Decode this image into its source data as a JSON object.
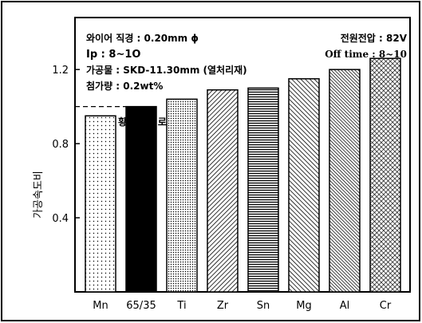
{
  "chart_data": {
    "type": "bar",
    "categories": [
      "Mn",
      "65/35",
      "Ti",
      "Zr",
      "Sn",
      "Mg",
      "Al",
      "Cr"
    ],
    "values": [
      0.95,
      1.0,
      1.04,
      1.09,
      1.1,
      1.15,
      1.2,
      1.26
    ],
    "ylabel": "가공속도비",
    "ylim": [
      0,
      1.4
    ],
    "yticks": [
      0.4,
      0.8,
      1.2
    ],
    "reference_line": 1.0,
    "grid": false,
    "annotations": {
      "wire_dia": "와이어 직경 : 0.20mm ϕ",
      "ip": "Ip : 8~1O",
      "workpiece": "가공물 : SKD-11.30mm (열처리재)",
      "additive": "첨가량 : 0.2wt%",
      "voltage": "전원전압 : 82V",
      "offtime": "Off time : 8~10",
      "reference_note": "65/35 황동을 1 로 함"
    },
    "bar_patterns": [
      "dots-sparse",
      "solid-black",
      "dots-dense",
      "hatch-diag-right",
      "hatch-horizontal",
      "hatch-diag-left",
      "hatch-diag-left-dense",
      "hatch-cross"
    ],
    "colors": {
      "ink": "#000000",
      "background": "#ffffff"
    }
  }
}
